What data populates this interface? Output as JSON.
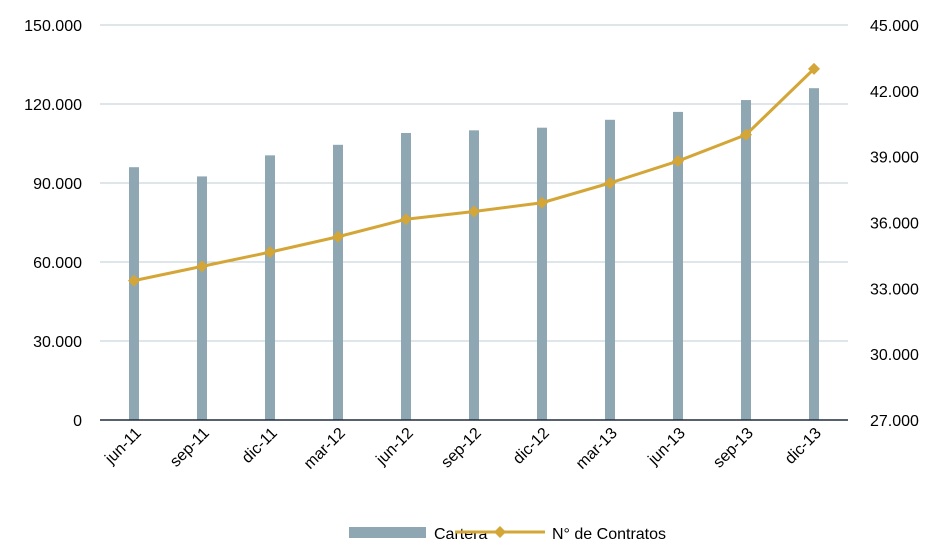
{
  "chart_data": {
    "type": "bar+line",
    "title": "",
    "categories": [
      "jun-11",
      "sep-11",
      "dic-11",
      "mar-12",
      "jun-12",
      "sep-12",
      "dic-12",
      "mar-13",
      "jun-13",
      "sep-13",
      "dic-13"
    ],
    "series": [
      {
        "name": "Cartera",
        "type": "bar",
        "axis": "left",
        "color": "#8ea7b2",
        "values": [
          96000,
          92500,
          100500,
          104500,
          109000,
          110000,
          111000,
          114000,
          117000,
          121500,
          126000
        ]
      },
      {
        "name": "N° de Contratos",
        "type": "line",
        "axis": "right",
        "color": "#d4a637",
        "values": [
          33350,
          34000,
          34650,
          35350,
          36150,
          36500,
          36900,
          37800,
          38800,
          40000,
          43000
        ]
      }
    ],
    "y_left": {
      "min": 0,
      "max": 150000,
      "ticks": [
        0,
        30000,
        60000,
        90000,
        120000,
        150000
      ],
      "tick_labels": [
        "0",
        "30.000",
        "60.000",
        "90.000",
        "120.000",
        "150.000"
      ]
    },
    "y_right": {
      "min": 27000,
      "max": 45000,
      "ticks": [
        27000,
        30000,
        33000,
        36000,
        39000,
        42000,
        45000
      ],
      "tick_labels": [
        "27.000",
        "30.000",
        "33.000",
        "36.000",
        "39.000",
        "42.000",
        "45.000"
      ]
    },
    "grid": true,
    "legend": "bottom-center"
  }
}
